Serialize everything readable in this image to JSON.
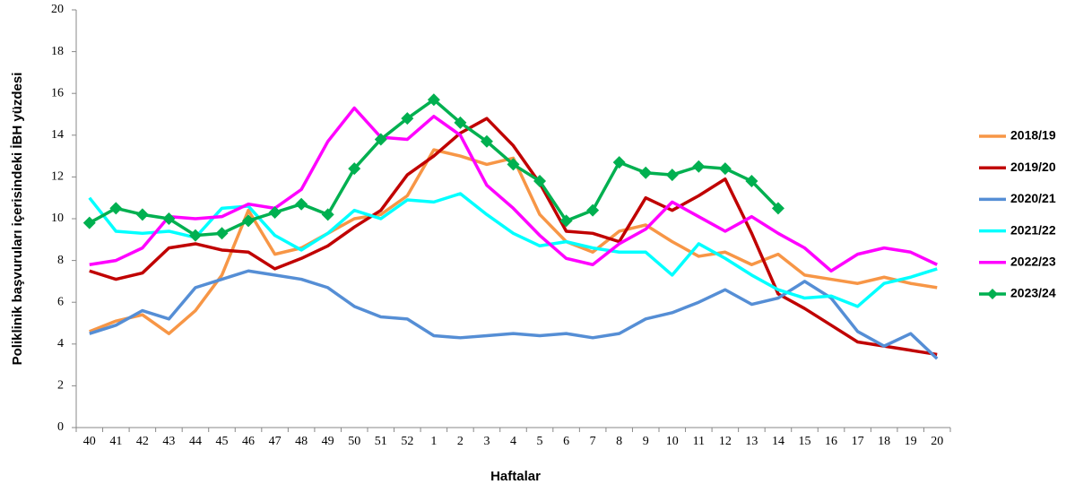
{
  "chart_data": {
    "type": "line",
    "y_label": "Poliklinik başvuruları içerisindeki İBH yüzdesi",
    "x_label": "Haftalar",
    "categories": [
      "40",
      "41",
      "42",
      "43",
      "44",
      "45",
      "46",
      "47",
      "48",
      "49",
      "50",
      "51",
      "52",
      "1",
      "2",
      "3",
      "4",
      "5",
      "6",
      "7",
      "8",
      "9",
      "10",
      "11",
      "12",
      "13",
      "14",
      "15",
      "16",
      "17",
      "18",
      "19",
      "20"
    ],
    "ylim": [
      0,
      20
    ],
    "yticks": [
      0,
      2,
      4,
      6,
      8,
      10,
      12,
      14,
      16,
      18,
      20
    ],
    "series": [
      {
        "name": "2018/19",
        "color": "#f79646",
        "values": [
          4.6,
          5.1,
          5.4,
          4.5,
          5.6,
          7.3,
          10.4,
          8.3,
          8.6,
          9.3,
          10.0,
          10.2,
          11.1,
          13.3,
          13.0,
          12.6,
          12.9,
          10.2,
          8.9,
          8.4,
          9.4,
          9.7,
          8.9,
          8.2,
          8.4,
          7.8,
          8.3,
          7.3,
          7.1,
          6.9,
          7.2,
          6.9,
          6.7
        ]
      },
      {
        "name": "2019/20",
        "color": "#c00000",
        "values": [
          7.5,
          7.1,
          7.4,
          8.6,
          8.8,
          8.5,
          8.4,
          7.6,
          8.1,
          8.7,
          9.6,
          10.4,
          12.1,
          13.0,
          14.1,
          14.8,
          13.5,
          11.7,
          9.4,
          9.3,
          8.9,
          11.0,
          10.4,
          11.1,
          11.9,
          9.3,
          6.4,
          5.7,
          4.9,
          4.1,
          3.9,
          3.7,
          3.5
        ]
      },
      {
        "name": "2020/21",
        "color": "#558ed5",
        "values": [
          4.5,
          4.9,
          5.6,
          5.2,
          6.7,
          7.1,
          7.5,
          7.3,
          7.1,
          6.7,
          5.8,
          5.3,
          5.2,
          4.4,
          4.3,
          4.4,
          4.5,
          4.4,
          4.5,
          4.3,
          4.5,
          5.2,
          5.5,
          6.0,
          6.6,
          5.9,
          6.2,
          7.0,
          6.2,
          4.6,
          3.9,
          4.5,
          3.3
        ]
      },
      {
        "name": "2021/22",
        "color": "#00ffff",
        "values": [
          11.0,
          9.4,
          9.3,
          9.4,
          9.1,
          10.5,
          10.6,
          9.2,
          8.5,
          9.3,
          10.4,
          10.0,
          10.9,
          10.8,
          11.2,
          10.2,
          9.3,
          8.7,
          8.9,
          8.6,
          8.4,
          8.4,
          7.3,
          8.8,
          8.1,
          7.3,
          6.6,
          6.2,
          6.3,
          5.8,
          6.9,
          7.2,
          7.6
        ]
      },
      {
        "name": "2022/23",
        "color": "#ff00ff",
        "values": [
          7.8,
          8.0,
          8.6,
          10.1,
          10.0,
          10.1,
          10.7,
          10.5,
          11.4,
          13.7,
          15.3,
          13.9,
          13.8,
          14.9,
          14.0,
          11.6,
          10.5,
          9.2,
          8.1,
          7.8,
          8.8,
          9.5,
          10.8,
          10.1,
          9.4,
          10.1,
          9.3,
          8.6,
          7.5,
          8.3,
          8.6,
          8.4,
          7.8
        ]
      },
      {
        "name": "2023/24",
        "color": "#00b050",
        "marker": "diamond",
        "values": [
          9.8,
          10.5,
          10.2,
          10.0,
          9.2,
          9.3,
          9.9,
          10.3,
          10.7,
          10.2,
          12.4,
          13.8,
          14.8,
          15.7,
          14.6,
          13.7,
          12.6,
          11.8,
          9.9,
          10.4,
          12.7,
          12.2,
          12.1,
          12.5,
          12.4,
          11.8,
          10.5,
          null,
          null,
          null,
          null,
          null,
          null
        ]
      }
    ]
  }
}
